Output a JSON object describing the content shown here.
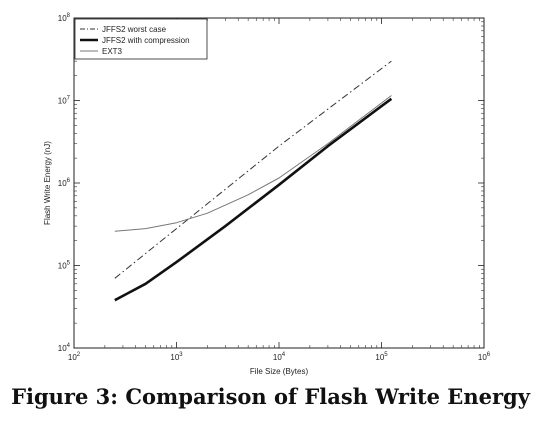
{
  "figure": {
    "caption": "Figure 3: Comparison of Flash Write Energy"
  },
  "chart_data": {
    "type": "line",
    "title": "",
    "xlabel": "File Size (Bytes)",
    "ylabel": "Flash Write Energy (nJ)",
    "xscale": "log",
    "yscale": "log",
    "xlim": [
      100,
      1000000
    ],
    "ylim": [
      10000,
      100000000
    ],
    "x_ticks": [
      {
        "base": "10",
        "exp": "2",
        "value": 100
      },
      {
        "base": "10",
        "exp": "3",
        "value": 1000
      },
      {
        "base": "10",
        "exp": "4",
        "value": 10000
      },
      {
        "base": "10",
        "exp": "5",
        "value": 100000
      },
      {
        "base": "10",
        "exp": "6",
        "value": 1000000
      }
    ],
    "y_ticks": [
      {
        "base": "10",
        "exp": "4",
        "value": 10000
      },
      {
        "base": "10",
        "exp": "5",
        "value": 100000
      },
      {
        "base": "10",
        "exp": "6",
        "value": 1000000
      },
      {
        "base": "10",
        "exp": "7",
        "value": 10000000
      },
      {
        "base": "10",
        "exp": "8",
        "value": 100000000
      }
    ],
    "grid": false,
    "legend_position": "top-left",
    "series": [
      {
        "name": "JFFS2 worst case",
        "style": "dashdot",
        "color": "#333333",
        "x": [
          250,
          1000,
          10000,
          125000
        ],
        "y": [
          70000,
          280000,
          2800000,
          30000000
        ]
      },
      {
        "name": "JFFS2 with compression",
        "style": "solid-thick",
        "color": "#111111",
        "x": [
          250,
          500,
          1000,
          3000,
          10000,
          30000,
          125000
        ],
        "y": [
          38000,
          60000,
          110000,
          300000,
          950000,
          2800000,
          10500000
        ]
      },
      {
        "name": "EXT3",
        "style": "solid-thin",
        "color": "#777777",
        "x": [
          250,
          500,
          1000,
          2000,
          5000,
          10000,
          30000,
          125000
        ],
        "y": [
          260000,
          280000,
          330000,
          430000,
          720000,
          1150000,
          3000000,
          11500000
        ]
      }
    ]
  }
}
